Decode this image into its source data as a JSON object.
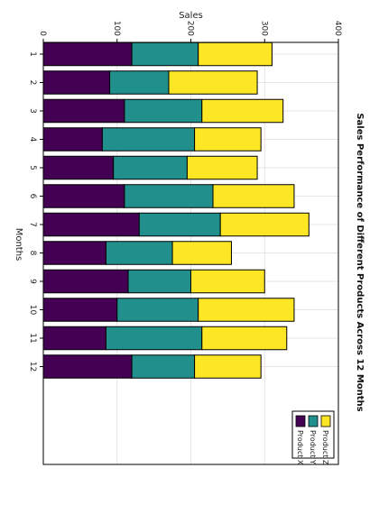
{
  "chart_data": {
    "type": "bar",
    "orientation": "horizontal-stacked",
    "title": "Sales Performance of Different Products Across 12 Months",
    "xlabel": "Sales",
    "ylabel": "Months",
    "xlim": [
      0,
      400
    ],
    "xticks": [
      0,
      100,
      200,
      300,
      400
    ],
    "categories": [
      "1",
      "2",
      "3",
      "4",
      "5",
      "6",
      "7",
      "8",
      "9",
      "10",
      "11",
      "12"
    ],
    "series": [
      {
        "name": "Product X",
        "color": "#440154",
        "values": [
          120,
          90,
          110,
          80,
          95,
          110,
          130,
          85,
          115,
          100,
          85,
          120
        ]
      },
      {
        "name": "Product Y",
        "color": "#21908d",
        "values": [
          90,
          80,
          105,
          125,
          100,
          120,
          110,
          90,
          85,
          110,
          130,
          85
        ]
      },
      {
        "name": "Product Z",
        "color": "#fde725",
        "values": [
          100,
          120,
          110,
          90,
          95,
          110,
          120,
          80,
          100,
          130,
          115,
          90
        ]
      }
    ],
    "grid": true,
    "legend": "bottom-right"
  }
}
